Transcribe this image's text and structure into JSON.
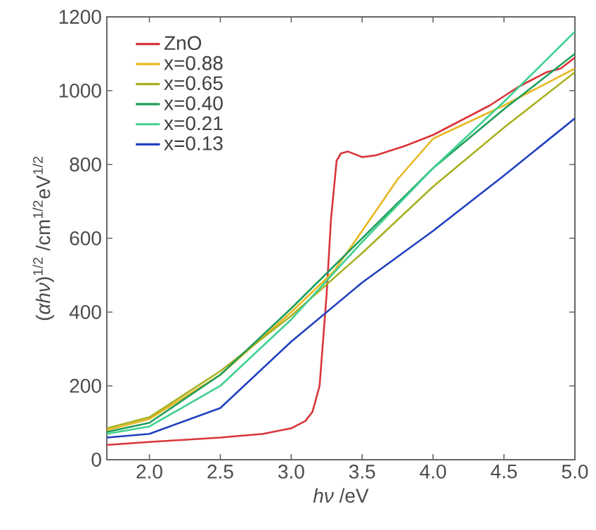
{
  "chart_data": {
    "type": "line",
    "xlabel": "*hν* /eV",
    "ylabel": "(*αhν*)$^{1/2}$ /cm$^{1/2}$eV$^{1/2}$",
    "xlim": [
      1.7,
      5.0
    ],
    "ylim": [
      0,
      1200
    ],
    "xticks": [
      {
        "value": 2,
        "label": "2.0"
      },
      2.5,
      {
        "value": 3,
        "label": "3.0"
      },
      3.5,
      {
        "value": 4,
        "label": "4.0"
      },
      4.5,
      {
        "value": 5,
        "label": "5.0"
      }
    ],
    "yticks": [
      0,
      200,
      400,
      600,
      800,
      1000,
      1200
    ],
    "legend": "top left",
    "grid": false,
    "series": [
      {
        "name": "ZnO",
        "color": "#d9343a",
        "x": [
          1.7,
          2.0,
          2.5,
          2.8,
          3.0,
          3.1,
          3.15,
          3.2,
          3.25,
          3.28,
          3.32,
          3.35,
          3.4,
          3.5,
          3.6,
          3.8,
          4.0,
          4.2,
          4.4,
          4.6,
          4.8,
          4.9,
          5.0
        ],
        "values": [
          40,
          48,
          60,
          70,
          85,
          105,
          130,
          200,
          450,
          650,
          810,
          830,
          835,
          820,
          825,
          850,
          880,
          920,
          960,
          1010,
          1050,
          1060,
          1090
        ]
      },
      {
        "name": "x=0.88",
        "color": "#e8b820",
        "x": [
          1.7,
          2.0,
          2.5,
          3.0,
          3.3,
          3.5,
          3.75,
          4.0,
          4.5,
          5.0
        ],
        "values": [
          80,
          110,
          230,
          400,
          510,
          620,
          760,
          870,
          960,
          1060
        ]
      },
      {
        "name": "x=0.65",
        "color": "#a8b020",
        "x": [
          1.7,
          2.0,
          2.5,
          3.0,
          3.5,
          4.0,
          4.5,
          5.0
        ],
        "values": [
          85,
          115,
          240,
          390,
          560,
          740,
          900,
          1050
        ]
      },
      {
        "name": "x=0.40",
        "color": "#1e9e5a",
        "x": [
          1.7,
          2.0,
          2.5,
          3.0,
          3.5,
          4.0,
          4.5,
          5.0
        ],
        "values": [
          75,
          100,
          230,
          410,
          600,
          790,
          950,
          1100
        ]
      },
      {
        "name": "x=0.21",
        "color": "#40d090",
        "x": [
          1.7,
          2.0,
          2.5,
          3.0,
          3.5,
          4.0,
          4.5,
          5.0
        ],
        "values": [
          70,
          90,
          200,
          380,
          590,
          790,
          970,
          1160
        ]
      },
      {
        "name": "x=0.13",
        "color": "#2040c0",
        "x": [
          1.7,
          2.0,
          2.5,
          3.0,
          3.5,
          4.0,
          4.5,
          5.0
        ],
        "values": [
          60,
          70,
          140,
          320,
          480,
          620,
          770,
          925
        ]
      }
    ]
  }
}
